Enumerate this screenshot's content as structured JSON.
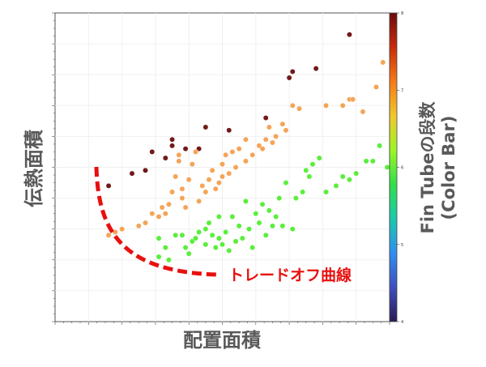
{
  "chart_data": {
    "type": "scatter",
    "xlabel": "配置面積",
    "ylabel": "伝熱面積",
    "colorbar": {
      "label_line1": "Fin Tubeの段数",
      "label_line2": "(Color Bar)",
      "min": 4,
      "max": 8,
      "ticks": [
        "4",
        "5",
        "6",
        "7",
        "8"
      ],
      "colormap": [
        "#2b1a52",
        "#3f4fbf",
        "#2f8ff0",
        "#1cc9ae",
        "#2ee04a",
        "#9ef526",
        "#f2c82a",
        "#f47a17",
        "#c92b0a",
        "#6b0a0a"
      ]
    },
    "annotation": {
      "text": "トレードオフ曲線",
      "color": "#e8100f"
    },
    "xlim": [
      0,
      100
    ],
    "ylim": [
      0,
      100
    ],
    "grid": true,
    "series": [
      {
        "color": "#6b0d0d",
        "value": 8,
        "points": [
          [
            16,
            44
          ],
          [
            23,
            48
          ],
          [
            27,
            49
          ],
          [
            29,
            55
          ],
          [
            33,
            53
          ],
          [
            35,
            57
          ],
          [
            35,
            59
          ],
          [
            39,
            56
          ],
          [
            43,
            56
          ],
          [
            45,
            63
          ],
          [
            52,
            62
          ],
          [
            63,
            66
          ],
          [
            70,
            79
          ],
          [
            71,
            81
          ],
          [
            78,
            82
          ],
          [
            88,
            93
          ]
        ]
      },
      {
        "color": "#f5a04f",
        "value": 7,
        "points": [
          [
            16,
            28
          ],
          [
            18,
            29
          ],
          [
            20,
            30
          ],
          [
            25,
            31
          ],
          [
            27,
            32
          ],
          [
            29,
            35
          ],
          [
            31,
            34
          ],
          [
            32,
            37
          ],
          [
            33,
            35
          ],
          [
            34,
            38
          ],
          [
            35,
            42
          ],
          [
            36,
            47
          ],
          [
            37,
            52
          ],
          [
            37,
            54
          ],
          [
            38,
            40
          ],
          [
            38,
            43
          ],
          [
            39,
            37
          ],
          [
            40,
            46
          ],
          [
            41,
            51
          ],
          [
            42,
            55
          ],
          [
            43,
            39
          ],
          [
            44,
            44
          ],
          [
            45,
            42
          ],
          [
            46,
            46
          ],
          [
            47,
            49
          ],
          [
            48,
            43
          ],
          [
            49,
            45
          ],
          [
            50,
            47
          ],
          [
            50,
            51
          ],
          [
            51,
            54
          ],
          [
            52,
            48
          ],
          [
            53,
            55
          ],
          [
            54,
            50
          ],
          [
            55,
            56
          ],
          [
            57,
            52
          ],
          [
            57,
            59
          ],
          [
            59,
            54
          ],
          [
            61,
            57
          ],
          [
            62,
            56
          ],
          [
            63,
            59
          ],
          [
            64,
            63
          ],
          [
            65,
            58
          ],
          [
            66,
            60
          ],
          [
            68,
            64
          ],
          [
            69,
            62
          ],
          [
            71,
            70
          ],
          [
            73,
            69
          ],
          [
            81,
            70
          ],
          [
            86,
            70
          ],
          [
            88,
            72
          ],
          [
            89,
            72
          ],
          [
            92,
            68
          ],
          [
            96,
            76
          ],
          [
            98,
            84
          ]
        ]
      },
      {
        "color": "#52ee32",
        "value": 6,
        "points": [
          [
            31,
            27
          ],
          [
            31,
            21
          ],
          [
            33,
            24
          ],
          [
            34,
            20
          ],
          [
            36,
            28
          ],
          [
            38,
            28
          ],
          [
            39,
            24
          ],
          [
            40,
            22
          ],
          [
            41,
            26
          ],
          [
            42,
            27
          ],
          [
            43,
            29
          ],
          [
            45,
            25
          ],
          [
            45,
            30
          ],
          [
            46,
            32
          ],
          [
            47,
            28
          ],
          [
            48,
            24
          ],
          [
            49,
            27
          ],
          [
            49,
            34
          ],
          [
            50,
            25
          ],
          [
            51,
            29
          ],
          [
            52,
            23
          ],
          [
            53,
            34
          ],
          [
            54,
            26
          ],
          [
            55,
            31
          ],
          [
            56,
            27
          ],
          [
            57,
            39
          ],
          [
            58,
            30
          ],
          [
            59,
            24
          ],
          [
            60,
            35
          ],
          [
            61,
            32
          ],
          [
            62,
            38
          ],
          [
            63,
            28
          ],
          [
            64,
            36
          ],
          [
            65,
            31
          ],
          [
            66,
            34
          ],
          [
            67,
            40
          ],
          [
            68,
            31
          ],
          [
            69,
            45
          ],
          [
            71,
            30
          ],
          [
            72,
            40
          ],
          [
            74,
            42
          ],
          [
            75,
            49
          ],
          [
            76,
            47
          ],
          [
            77,
            51
          ],
          [
            79,
            53
          ],
          [
            81,
            42
          ],
          [
            84,
            44
          ],
          [
            86,
            47
          ],
          [
            88,
            46
          ],
          [
            90,
            48
          ],
          [
            93,
            52
          ],
          [
            95,
            52
          ],
          [
            97,
            57
          ],
          [
            102,
            50
          ]
        ]
      }
    ]
  }
}
